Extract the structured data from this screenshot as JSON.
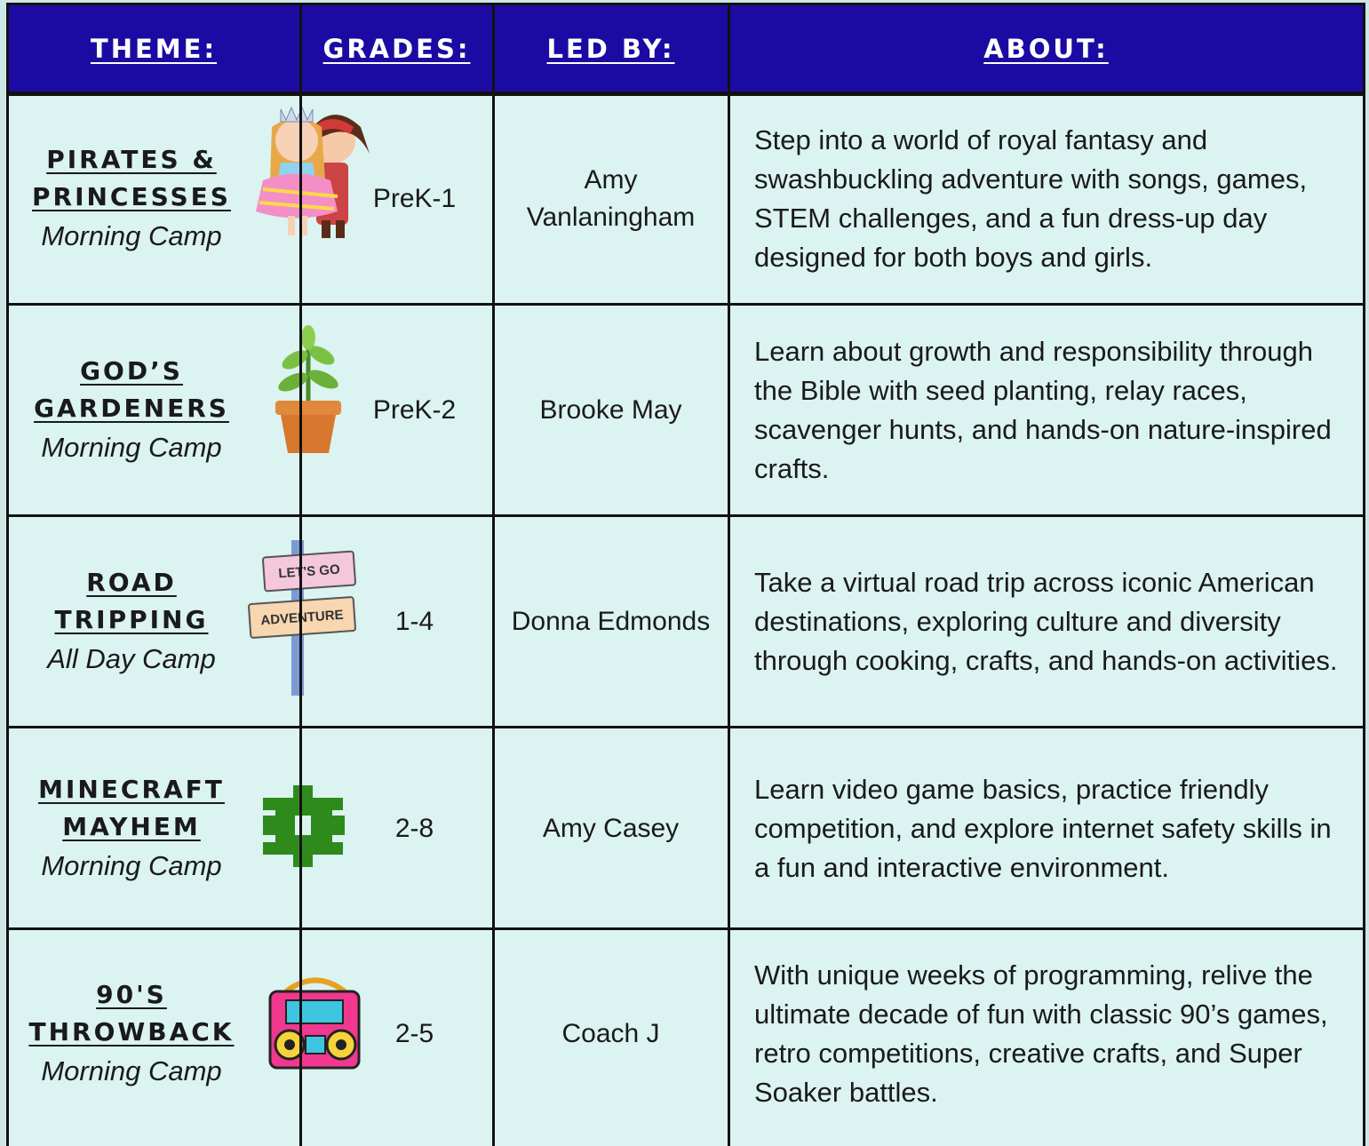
{
  "table": {
    "header": [
      "THEME:",
      "GRADES:",
      "LED BY:",
      "ABOUT:"
    ],
    "rows": [
      {
        "title": [
          "PIRATES &",
          "PRINCESSES"
        ],
        "camp": "Morning Camp",
        "grades": "PreK-1",
        "leader": "Amy Vanlaningham",
        "about": "Step into a world of royal fantasy and swashbuckling adventure with songs, games, STEM challenges, and a fun dress-up day designed for both boys and girls."
      },
      {
        "title": [
          "GOD’S",
          "GARDENERS"
        ],
        "camp": "Morning Camp",
        "grades": "PreK-2",
        "leader": "Brooke May",
        "about": "Learn about growth and responsibility through the Bible with seed planting, relay races, scavenger hunts, and hands-on nature-inspired crafts."
      },
      {
        "title": [
          "ROAD",
          "TRIPPING"
        ],
        "camp": "All Day Camp",
        "grades": "1-4",
        "leader": "Donna Edmonds",
        "about": "Take a virtual road trip across iconic American destinations, exploring culture and diversity through cooking, crafts, and hands-on activities.",
        "sign": [
          "LET'S GO",
          "ADVENTURE"
        ]
      },
      {
        "title": [
          "MINECRAFT",
          "MAYHEM"
        ],
        "camp": "Morning Camp",
        "grades": "2-8",
        "leader": "Amy Casey",
        "about": "Learn video game basics, practice friendly competition, and explore internet safety skills in a fun and interactive environment."
      },
      {
        "title": [
          "90'S",
          "THROWBACK"
        ],
        "camp": "Morning Camp",
        "grades": "2-5",
        "leader": "Coach J",
        "about": "With unique weeks of programming, relive the ultimate decade of fun with classic 90’s games, retro competitions, creative crafts, and Super Soaker battles."
      }
    ]
  }
}
